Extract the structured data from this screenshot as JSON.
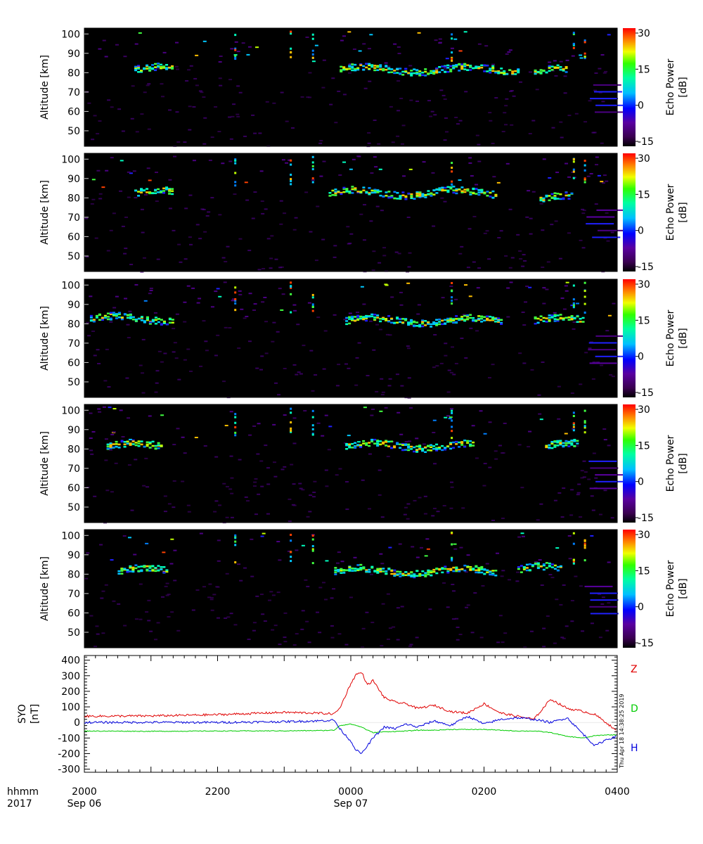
{
  "timestamp": "Thu Apr 18 14:38:25 2019",
  "time_axis": {
    "row1_label": "hhmm",
    "row2_label": "2017",
    "ticks": [
      "2000",
      "2200",
      "0000",
      "0200",
      "0400"
    ],
    "dates": [
      "Sep 06",
      "Sep 07"
    ]
  },
  "chart_data": [
    {
      "type": "heatmap",
      "ylabel": "Altitude [km]",
      "y_ticks": [
        "50",
        "60",
        "70",
        "80",
        "90",
        "100"
      ],
      "ylim": [
        42,
        103
      ],
      "x_range": [
        "2000 Sep 06",
        "0400 Sep 07"
      ],
      "colorbar": {
        "label": "Echo Power [dB]",
        "ticks": [
          "30",
          "15",
          "0",
          "-15"
        ],
        "range": [
          -15,
          30
        ]
      },
      "echo_layers_km": [
        {
          "from": "2045",
          "to": "2120",
          "alt": 82
        },
        {
          "from": "2350",
          "to": "0230",
          "alt": 82
        },
        {
          "from": "0245",
          "to": "0315",
          "alt": 81
        }
      ]
    },
    {
      "type": "heatmap",
      "ylabel": "Altitude [km]",
      "y_ticks": [
        "50",
        "60",
        "70",
        "80",
        "90",
        "100"
      ],
      "ylim": [
        42,
        103
      ],
      "x_range": [
        "2000 Sep 06",
        "0400 Sep 07"
      ],
      "colorbar": {
        "label": "Echo Power [dB]",
        "ticks": [
          "30",
          "15",
          "0",
          "-15"
        ],
        "range": [
          -15,
          30
        ]
      },
      "echo_layers_km": [
        {
          "from": "2045",
          "to": "2120",
          "alt": 83
        },
        {
          "from": "2340",
          "to": "0210",
          "alt": 83
        },
        {
          "from": "0250",
          "to": "0320",
          "alt": 80
        }
      ]
    },
    {
      "type": "heatmap",
      "ylabel": "Altitude [km]",
      "y_ticks": [
        "50",
        "60",
        "70",
        "80",
        "90",
        "100"
      ],
      "ylim": [
        42,
        103
      ],
      "x_range": [
        "2000 Sep 06",
        "0400 Sep 07"
      ],
      "colorbar": {
        "label": "Echo Power [dB]",
        "ticks": [
          "30",
          "15",
          "0",
          "-15"
        ],
        "range": [
          -15,
          30
        ]
      },
      "echo_layers_km": [
        {
          "from": "2005",
          "to": "2120",
          "alt": 83
        },
        {
          "from": "2355",
          "to": "0215",
          "alt": 82
        },
        {
          "from": "0245",
          "to": "0330",
          "alt": 82
        }
      ]
    },
    {
      "type": "heatmap",
      "ylabel": "Altitude [km]",
      "y_ticks": [
        "50",
        "60",
        "70",
        "80",
        "90",
        "100"
      ],
      "ylim": [
        42,
        103
      ],
      "x_range": [
        "2000 Sep 06",
        "0400 Sep 07"
      ],
      "colorbar": {
        "label": "Echo Power [dB]",
        "ticks": [
          "30",
          "15",
          "0",
          "-15"
        ],
        "range": [
          -15,
          30
        ]
      },
      "echo_layers_km": [
        {
          "from": "2020",
          "to": "2110",
          "alt": 82
        },
        {
          "from": "2355",
          "to": "0150",
          "alt": 82
        },
        {
          "from": "0255",
          "to": "0325",
          "alt": 82
        }
      ]
    },
    {
      "type": "heatmap",
      "ylabel": "Altitude [km]",
      "y_ticks": [
        "50",
        "60",
        "70",
        "80",
        "90",
        "100"
      ],
      "ylim": [
        42,
        103
      ],
      "x_range": [
        "2000 Sep 06",
        "0400 Sep 07"
      ],
      "colorbar": {
        "label": "Echo Power [dB]",
        "ticks": [
          "30",
          "15",
          "0",
          "-15"
        ],
        "range": [
          -15,
          30
        ]
      },
      "echo_layers_km": [
        {
          "from": "2030",
          "to": "2115",
          "alt": 82
        },
        {
          "from": "2345",
          "to": "0210",
          "alt": 82
        },
        {
          "from": "0230",
          "to": "0310",
          "alt": 83
        }
      ]
    },
    {
      "type": "line",
      "ylabel": "SYO\n[nT]",
      "y_ticks": [
        "400",
        "300",
        "200",
        "100",
        "0",
        "-100",
        "-200",
        "-300"
      ],
      "ylim": [
        -320,
        430
      ],
      "x": [
        "2000",
        "2100",
        "2200",
        "2300",
        "2330",
        "2345",
        "2350",
        "0000",
        "0005",
        "0010",
        "0015",
        "0020",
        "0030",
        "0040",
        "0050",
        "0100",
        "0115",
        "0130",
        "0145",
        "0200",
        "0215",
        "0230",
        "0245",
        "0300",
        "0315",
        "0330",
        "0340",
        "0350",
        "0400"
      ],
      "series": [
        {
          "name": "Z",
          "color": "#e00000",
          "values": [
            40,
            42,
            50,
            65,
            60,
            55,
            90,
            250,
            310,
            320,
            240,
            270,
            160,
            130,
            120,
            90,
            110,
            70,
            60,
            120,
            60,
            40,
            20,
            150,
            90,
            70,
            50,
            0,
            -60
          ]
        },
        {
          "name": "D",
          "color": "#00cc00",
          "values": [
            -55,
            -57,
            -55,
            -54,
            -52,
            -50,
            -20,
            -10,
            -20,
            -30,
            -50,
            -65,
            -60,
            -58,
            -55,
            -50,
            -50,
            -45,
            -45,
            -45,
            -50,
            -55,
            -55,
            -65,
            -90,
            -100,
            -85,
            -80,
            -80
          ]
        },
        {
          "name": "H",
          "color": "#0000dd",
          "values": [
            0,
            1,
            0,
            5,
            10,
            15,
            -40,
            -120,
            -180,
            -200,
            -150,
            -100,
            -30,
            -40,
            -10,
            -30,
            10,
            -20,
            40,
            -10,
            20,
            30,
            20,
            0,
            30,
            -80,
            -150,
            -110,
            -90
          ]
        }
      ]
    }
  ]
}
